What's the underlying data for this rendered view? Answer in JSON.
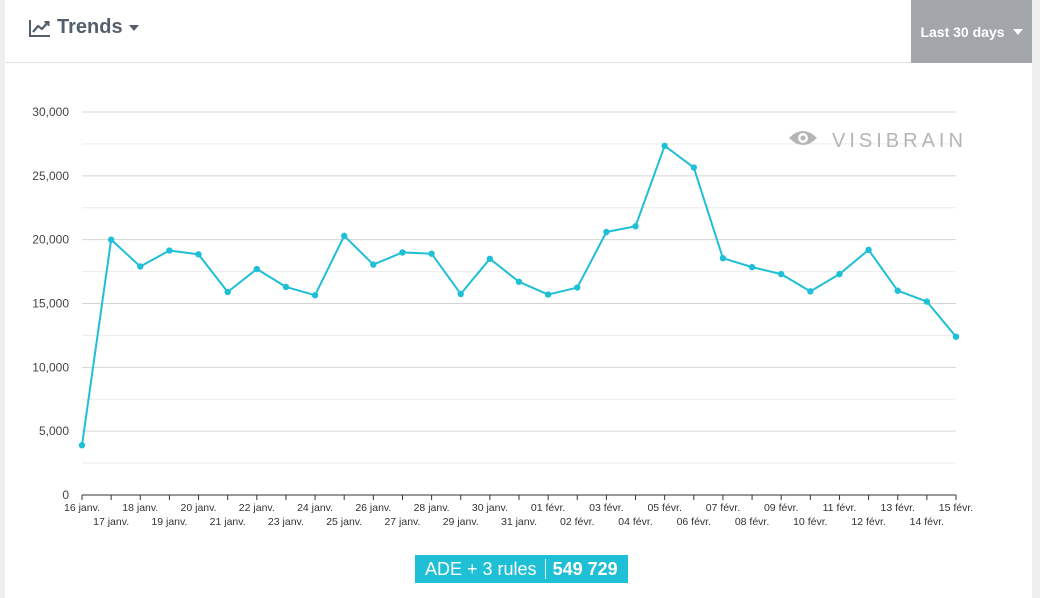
{
  "header": {
    "title": "Trends",
    "range_label": "Last 30 days"
  },
  "watermark": {
    "text": "VISIBRAIN"
  },
  "legend": {
    "series_name": "ADE + 3 rules",
    "total": "549 729"
  },
  "colors": {
    "series": "#1fbfd6",
    "range_button": "#a2a6ab",
    "title": "#555f6b"
  },
  "chart_data": {
    "type": "line",
    "ylim": [
      0,
      30000
    ],
    "y_ticks": [
      0,
      5000,
      10000,
      15000,
      20000,
      25000,
      30000
    ],
    "y_tick_labels": [
      "0",
      "5,000",
      "10,000",
      "15,000",
      "20,000",
      "25,000",
      "30,000"
    ],
    "grid": true,
    "categories": [
      "16 janv.",
      "17 janv.",
      "18 janv.",
      "19 janv.",
      "20 janv.",
      "21 janv.",
      "22 janv.",
      "23 janv.",
      "24 janv.",
      "25 janv.",
      "26 janv.",
      "27 janv.",
      "28 janv.",
      "29 janv.",
      "30 janv.",
      "31 janv.",
      "01 févr.",
      "02 févr.",
      "03 févr.",
      "04 févr.",
      "05 févr.",
      "06 févr.",
      "07 févr.",
      "08 févr.",
      "09 févr.",
      "10 févr.",
      "11 févr.",
      "12 févr.",
      "13 févr.",
      "14 févr.",
      "15 févr."
    ],
    "series": [
      {
        "name": "ADE + 3 rules",
        "values": [
          3900,
          20000,
          17900,
          19150,
          18850,
          15900,
          17700,
          16300,
          15650,
          20300,
          18050,
          19000,
          18900,
          15750,
          18500,
          16700,
          15700,
          16250,
          20600,
          21050,
          27350,
          25650,
          18550,
          17850,
          17300,
          15950,
          17300,
          19200,
          16000,
          15150,
          12400
        ]
      }
    ]
  }
}
